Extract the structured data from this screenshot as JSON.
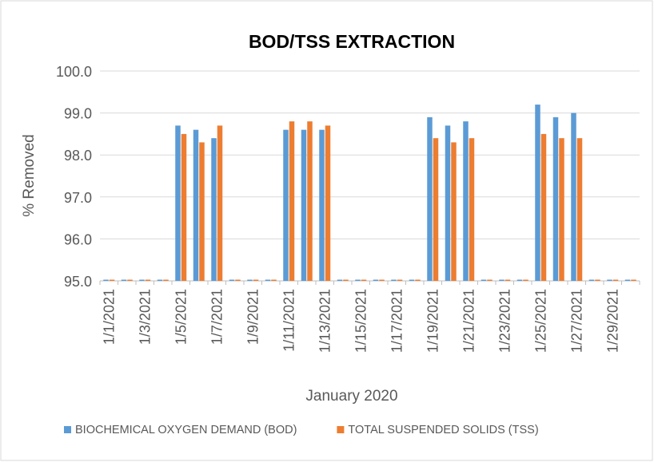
{
  "chart_data": {
    "type": "bar",
    "title": "BOD/TSS EXTRACTION",
    "x_label": "January 2020",
    "y_label": "% Removed",
    "categories": [
      "1/1/2021",
      null,
      "1/3/2021",
      null,
      "1/5/2021",
      null,
      "1/7/2021",
      null,
      "1/9/2021",
      null,
      "1/11/2021",
      null,
      "1/13/2021",
      null,
      "1/15/2021",
      null,
      "1/17/2021",
      null,
      "1/19/2021",
      null,
      "1/21/2021",
      null,
      "1/23/2021",
      null,
      "1/25/2021",
      null,
      "1/27/2021",
      null,
      "1/29/2021",
      null
    ],
    "series": [
      {
        "name": "BIOCHEMICAL OXYGEN DEMAND (BOD)",
        "color": "#5b9bd5",
        "values": [
          95,
          95,
          95,
          95,
          98.7,
          98.6,
          98.4,
          95,
          95,
          95,
          98.6,
          98.6,
          98.6,
          95,
          95,
          95,
          95,
          95,
          98.9,
          98.7,
          98.8,
          95,
          95,
          95,
          99.2,
          98.9,
          99.0,
          95,
          95,
          95
        ]
      },
      {
        "name": "TOTAL SUSPENDED SOLIDS (TSS)",
        "color": "#ed7d31",
        "values": [
          95,
          95,
          95,
          95,
          98.5,
          98.3,
          98.7,
          95,
          95,
          95,
          98.8,
          98.8,
          98.7,
          95,
          95,
          95,
          95,
          95,
          98.4,
          98.3,
          98.4,
          95,
          95,
          95,
          98.5,
          98.4,
          98.4,
          95,
          95,
          95
        ]
      }
    ],
    "ylim": [
      95,
      100
    ],
    "yticks": [
      {
        "value": 95,
        "label": "95.0"
      },
      {
        "value": 96,
        "label": "96.0"
      },
      {
        "value": 97,
        "label": "97.0"
      },
      {
        "value": 98,
        "label": "98.0"
      },
      {
        "value": 99,
        "label": "99.0"
      },
      {
        "value": 100,
        "label": "100.0"
      }
    ],
    "grid": true,
    "legend": "bottom"
  }
}
